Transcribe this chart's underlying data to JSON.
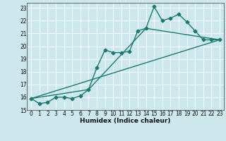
{
  "title": "",
  "xlabel": "Humidex (Indice chaleur)",
  "bg_color": "#cce8ec",
  "grid_color": "#ffffff",
  "line_color": "#1a7a6e",
  "xlim": [
    -0.5,
    23.5
  ],
  "ylim": [
    15,
    23.4
  ],
  "xticks": [
    0,
    1,
    2,
    3,
    4,
    5,
    6,
    7,
    8,
    9,
    10,
    11,
    12,
    13,
    14,
    15,
    16,
    17,
    18,
    19,
    20,
    21,
    22,
    23
  ],
  "yticks": [
    15,
    16,
    17,
    18,
    19,
    20,
    21,
    22,
    23
  ],
  "line1_x": [
    0,
    1,
    2,
    3,
    4,
    5,
    6,
    7,
    8,
    9,
    10,
    11,
    12,
    13,
    14,
    15,
    16,
    17,
    18,
    19,
    20,
    21,
    22,
    23
  ],
  "line1_y": [
    15.9,
    15.5,
    15.6,
    16.0,
    16.0,
    15.9,
    16.1,
    16.6,
    18.3,
    19.7,
    19.5,
    19.5,
    19.6,
    21.2,
    21.4,
    23.1,
    22.0,
    22.2,
    22.5,
    21.9,
    21.2,
    20.5,
    20.5,
    20.5
  ],
  "line2_x": [
    0,
    7,
    14,
    23
  ],
  "line2_y": [
    15.9,
    16.6,
    21.4,
    20.5
  ],
  "line3_x": [
    0,
    23
  ],
  "line3_y": [
    15.9,
    20.5
  ],
  "marker_size": 2.5,
  "line_width": 1.0,
  "tick_fontsize": 5.5,
  "xlabel_fontsize": 6.5
}
